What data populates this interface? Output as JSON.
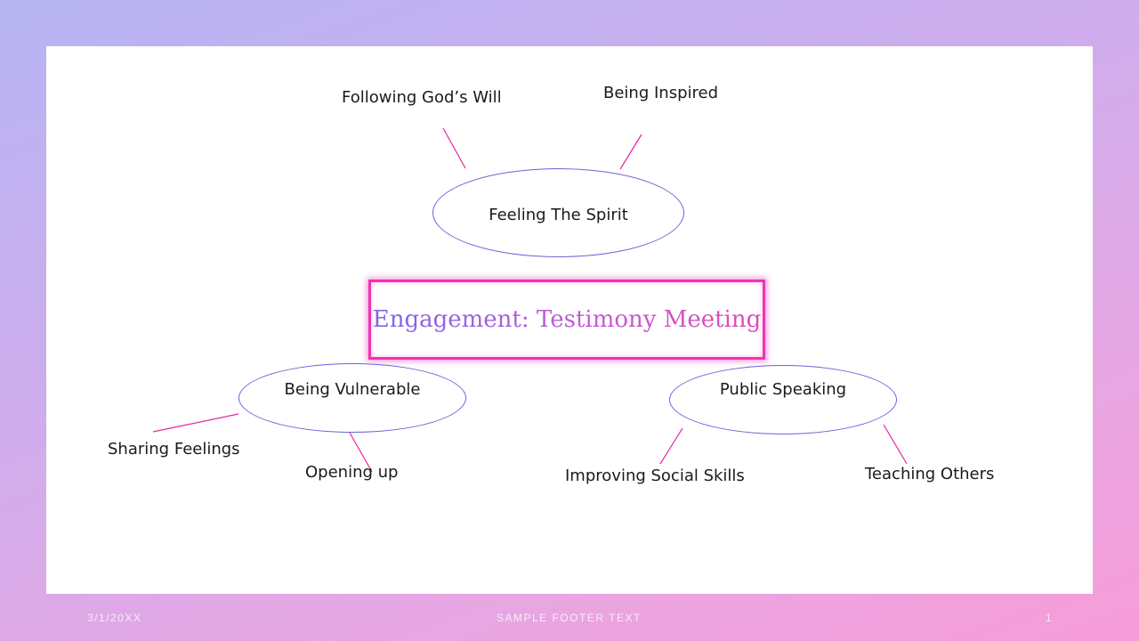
{
  "title": "Engagement: Testimony Meeting",
  "nodes": {
    "center_top": "Feeling The Spirit",
    "left": "Being Vulnerable",
    "right": "Public Speaking"
  },
  "branches": {
    "top_left": "Following God’s Will",
    "top_right": "Being Inspired",
    "left_left": "Sharing Feelings",
    "left_bottom": "Opening up",
    "right_left": "Improving Social Skills",
    "right_right": "Teaching Others"
  },
  "footer": {
    "date": "3/1/20XX",
    "text": "SAMPLE FOOTER TEXT",
    "page": "1"
  },
  "colors": {
    "connector": "#e8269e",
    "ellipse_border": "#6b63d6",
    "title_border": "#f032b3"
  }
}
